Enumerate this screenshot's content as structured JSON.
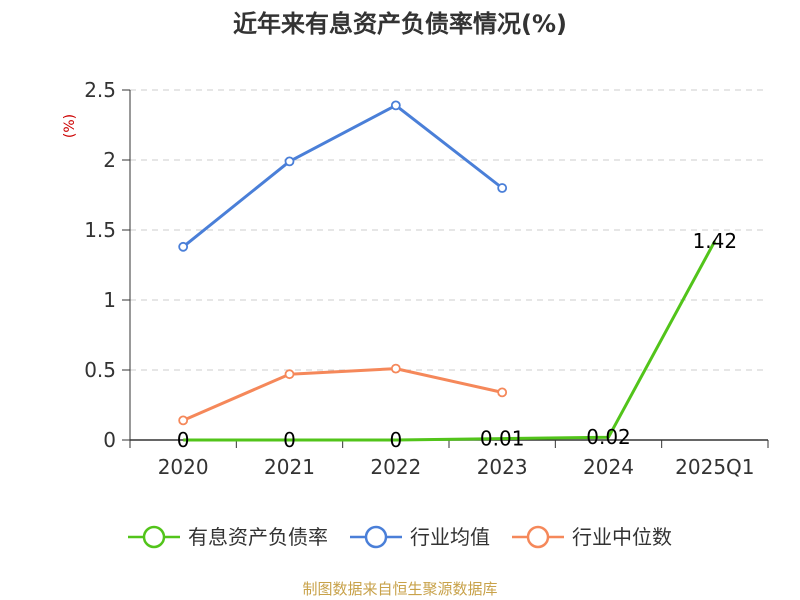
{
  "chart_data": {
    "type": "line",
    "title": "近年来有息资产负债率情况(%)",
    "ylabel": "(%)",
    "xlabel": "",
    "categories": [
      "2020",
      "2021",
      "2022",
      "2023",
      "2024",
      "2025Q1"
    ],
    "ylim": [
      0,
      2.5
    ],
    "yticks": [
      "0",
      "0.5",
      "1",
      "1.5",
      "2",
      "2.5"
    ],
    "grid": true,
    "legend_position": "bottom",
    "series": [
      {
        "name": "有息资产负债率",
        "color": "#52c41a",
        "values": [
          0,
          0,
          0,
          0.01,
          0.02,
          1.42
        ],
        "labels": [
          "0",
          "0",
          "0",
          "0.01",
          "0.02",
          "1.42"
        ],
        "show_markers": false
      },
      {
        "name": "行业均值",
        "color": "#4a7fd8",
        "values": [
          1.38,
          1.99,
          2.39,
          1.8,
          null,
          null
        ],
        "show_markers": true
      },
      {
        "name": "行业中位数",
        "color": "#f5885a",
        "values": [
          0.14,
          0.47,
          0.51,
          0.34,
          null,
          null
        ],
        "show_markers": true
      }
    ]
  },
  "source_text": "制图数据来自恒生聚源数据库"
}
